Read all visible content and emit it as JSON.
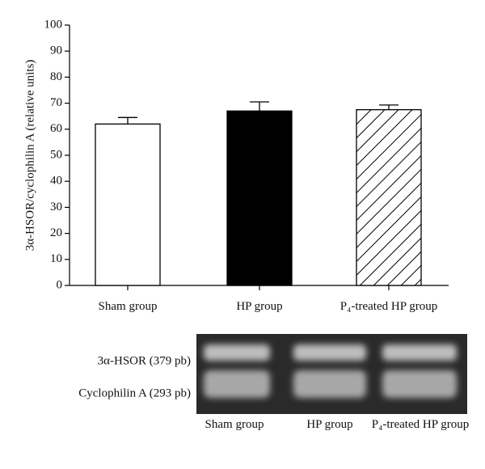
{
  "chart_data": {
    "type": "bar",
    "ylabel": "3α-HSOR/cyclophilin A (relative units)",
    "categories": [
      "Sham group",
      "HP group",
      "P₄-treated HP group"
    ],
    "values": [
      62,
      67,
      67.5
    ],
    "errors": [
      2.5,
      3.5,
      1.8
    ],
    "colors": [
      "#ffffff",
      "#000000",
      "#ffffff"
    ],
    "patterns": [
      "none",
      "none",
      "hatch"
    ],
    "ylim": [
      0,
      100
    ],
    "yticks": [
      0,
      10,
      20,
      30,
      40,
      50,
      60,
      70,
      80,
      90,
      100
    ]
  },
  "gel": {
    "bands": [
      "3α-HSOR (379 pb)",
      "Cyclophilin A (293 pb)"
    ],
    "lanes": [
      "Sham group",
      "HP group",
      "P₄-treated HP group"
    ]
  }
}
